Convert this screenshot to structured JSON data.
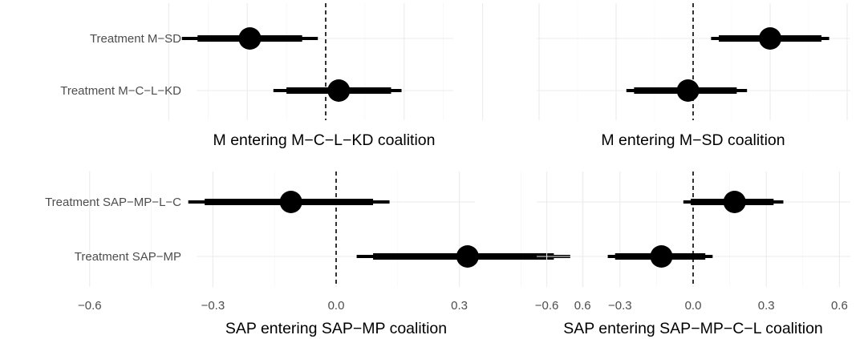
{
  "chart_data": [
    {
      "type": "coefficient-plot",
      "xlabel": "M entering M−C−L−KD coalition",
      "xlim": [
        -0.72,
        0.72
      ],
      "xticks": [
        -0.6,
        -0.3,
        0.0,
        0.3,
        0.6
      ],
      "xtick_labels": [],
      "grid": true,
      "reference_line": 0,
      "rows": [
        {
          "label": "Treatment M−SD",
          "estimate": -0.29,
          "inner": [
            -0.49,
            -0.09
          ],
          "outer": [
            -0.55,
            -0.03
          ]
        },
        {
          "label": "Treatment M−C−L−KD",
          "estimate": 0.05,
          "inner": [
            -0.15,
            0.25
          ],
          "outer": [
            -0.2,
            0.29
          ]
        }
      ]
    },
    {
      "type": "coefficient-plot",
      "xlabel": "M entering M−SD coalition",
      "xlim": [
        -0.72,
        0.72
      ],
      "xticks": [
        -0.6,
        -0.3,
        0.0,
        0.3,
        0.6
      ],
      "xtick_labels": [],
      "grid": true,
      "reference_line": 0,
      "rows": [
        {
          "label": "",
          "estimate": 0.3,
          "inner": [
            0.1,
            0.5
          ],
          "outer": [
            0.07,
            0.53
          ]
        },
        {
          "label": "",
          "estimate": -0.02,
          "inner": [
            -0.23,
            0.17
          ],
          "outer": [
            -0.26,
            0.21
          ]
        }
      ]
    },
    {
      "type": "coefficient-plot",
      "xlabel": "SAP entering SAP−MP coalition",
      "xlim": [
        -0.72,
        0.72
      ],
      "xticks": [
        -0.6,
        -0.3,
        0.0,
        0.3,
        0.6
      ],
      "xtick_labels": [
        "−0.6",
        "−0.3",
        "0.0",
        "0.3",
        "0.6"
      ],
      "grid": true,
      "reference_line": 0,
      "rows": [
        {
          "label": "Treatment SAP−MP−L−C",
          "estimate": -0.11,
          "inner": [
            -0.32,
            0.09
          ],
          "outer": [
            -0.36,
            0.13
          ]
        },
        {
          "label": "Treatment SAP−MP",
          "estimate": 0.32,
          "inner": [
            0.09,
            0.53
          ],
          "outer": [
            0.05,
            0.57
          ]
        }
      ]
    },
    {
      "type": "coefficient-plot",
      "xlabel": "SAP entering SAP−MP−C−L coalition",
      "xlim": [
        -0.72,
        0.72
      ],
      "xticks": [
        -0.6,
        -0.3,
        0.0,
        0.3,
        0.6
      ],
      "xtick_labels": [
        "−0.6",
        "−0.3",
        "0.0",
        "0.3",
        "0.6"
      ],
      "grid": true,
      "reference_line": 0,
      "rows": [
        {
          "label": "",
          "estimate": 0.17,
          "inner": [
            -0.01,
            0.33
          ],
          "outer": [
            -0.04,
            0.37
          ]
        },
        {
          "label": "",
          "estimate": -0.13,
          "inner": [
            -0.32,
            0.05
          ],
          "outer": [
            -0.35,
            0.08
          ]
        }
      ]
    }
  ]
}
